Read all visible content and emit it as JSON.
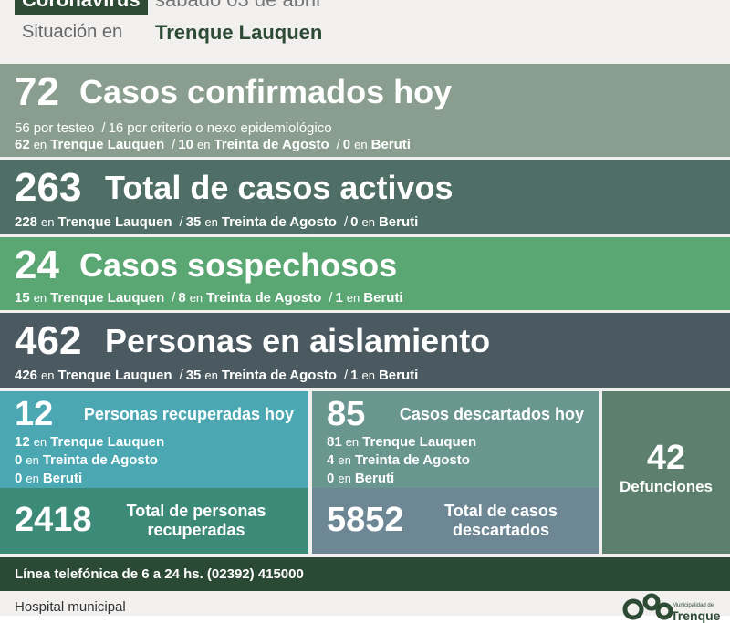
{
  "header": {
    "badge": "Coronavirus",
    "date": "sábado 03 de abril",
    "label": "Situación en",
    "place": "Trenque Lauquen"
  },
  "bands": [
    {
      "number": 72,
      "title": "Casos confirmados hoy",
      "lines": [
        [
          {
            "n": 56,
            "text": "por testeo"
          },
          {
            "sep": "/",
            "n": 16,
            "text": "por criterio o nexo epidemiológico"
          }
        ],
        [
          {
            "n": 62,
            "w": "en",
            "place": "Trenque Lauquen"
          },
          {
            "sep": "/",
            "n": 10,
            "w": "en",
            "place": "Treinta de Agosto"
          },
          {
            "sep": "/",
            "n": 0,
            "w": "en",
            "place": "Beruti"
          }
        ]
      ]
    },
    {
      "number": 263,
      "title": "Total de casos activos",
      "lines": [
        [
          {
            "n": 228,
            "w": "en",
            "place": "Trenque Lauquen"
          },
          {
            "sep": "/",
            "n": 35,
            "w": "en",
            "place": "Treinta de Agosto"
          },
          {
            "sep": "/",
            "n": 0,
            "w": "en",
            "place": "Beruti"
          }
        ]
      ]
    },
    {
      "number": 24,
      "title": "Casos sospechosos",
      "lines": [
        [
          {
            "n": 15,
            "w": "en",
            "place": "Trenque Lauquen"
          },
          {
            "sep": "/",
            "n": 8,
            "w": "en",
            "place": "Treinta de Agosto"
          },
          {
            "sep": "/",
            "n": 1,
            "w": "en",
            "place": "Beruti"
          }
        ]
      ]
    },
    {
      "number": 462,
      "title": "Personas en aislamiento",
      "lines": [
        [
          {
            "n": 426,
            "w": "en",
            "place": "Trenque Lauquen"
          },
          {
            "sep": "/",
            "n": 35,
            "w": "en",
            "place": "Treinta de Agosto"
          },
          {
            "sep": "/",
            "n": 1,
            "w": "en",
            "place": "Beruti"
          }
        ]
      ]
    }
  ],
  "tiles": [
    {
      "number": 12,
      "title": "Personas recuperadas hoy",
      "lines": [
        [
          {
            "n": 12,
            "w": "en",
            "place": "Trenque Lauquen"
          }
        ],
        [
          {
            "n": 0,
            "w": "en",
            "place": "Treinta de Agosto"
          }
        ],
        [
          {
            "n": 0,
            "w": "en",
            "place": "Beruti"
          }
        ]
      ],
      "total": 2418,
      "total_label": "Total de personas recuperadas"
    },
    {
      "number": 85,
      "title": "Casos descartados hoy",
      "lines": [
        [
          {
            "n": 81,
            "w": "en",
            "place": "Trenque Lauquen"
          }
        ],
        [
          {
            "n": 4,
            "w": "en",
            "place": "Treinta de Agosto"
          }
        ],
        [
          {
            "n": 0,
            "w": "en",
            "place": "Beruti"
          }
        ]
      ],
      "total": 5852,
      "total_label": "Total de casos descartados"
    }
  ],
  "deaths": {
    "number": 42,
    "label": "Defunciones"
  },
  "footer": {
    "phone": "Línea telefónica de 6 a 24 hs. (02392) 415000",
    "hospital": "Hospital municipal",
    "logo_top": "Municipalidad de",
    "logo_name": "Trenque"
  }
}
